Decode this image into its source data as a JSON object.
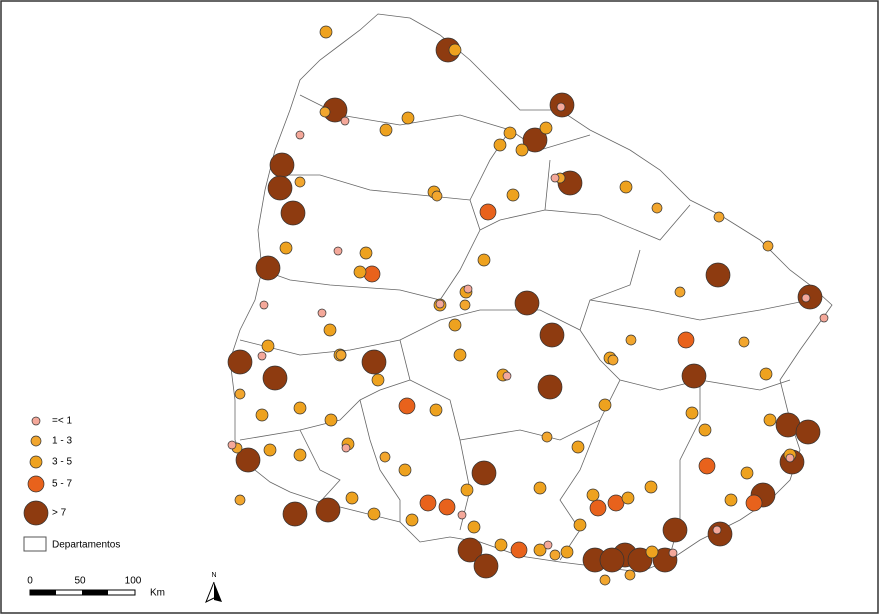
{
  "legend": {
    "items": [
      {
        "label": "=< 1",
        "color": "#f4a89a"
      },
      {
        "label": "1 - 3",
        "color": "#f2a62e"
      },
      {
        "label": "3 - 5",
        "color": "#eea21f"
      },
      {
        "label": "5 - 7",
        "color": "#e8621c"
      },
      {
        "label": "> 7",
        "color": "#8e3b10"
      }
    ],
    "boundary_label": "Departamentos"
  },
  "scale_bar": {
    "ticks": [
      0,
      50,
      100
    ],
    "unit": "Km"
  },
  "north_arrow": "N"
}
